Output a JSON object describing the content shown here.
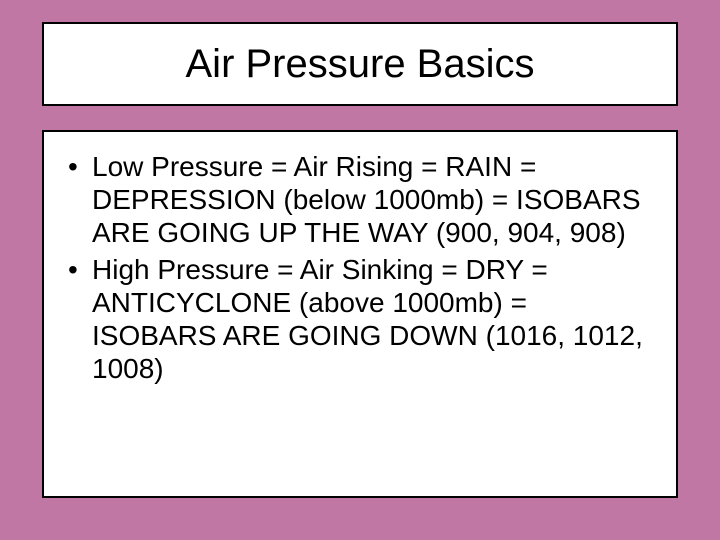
{
  "slide": {
    "background_color": "#c177a3",
    "title": {
      "text": "Air Pressure Basics",
      "font_size": 40,
      "font_family": "Arial",
      "text_color": "#000000",
      "box_background": "#ffffff",
      "box_border_color": "#000000",
      "box_border_width": 2
    },
    "body": {
      "box_background": "#ffffff",
      "box_border_color": "#000000",
      "box_border_width": 2,
      "font_size": 28,
      "text_color": "#000000",
      "bullets": [
        "Low Pressure = Air Rising = RAIN = DEPRESSION (below 1000mb) = ISOBARS ARE GOING UP THE WAY (900, 904, 908)",
        "High Pressure = Air Sinking = DRY = ANTICYCLONE (above 1000mb) = ISOBARS ARE GOING DOWN (1016, 1012, 1008)"
      ]
    }
  }
}
